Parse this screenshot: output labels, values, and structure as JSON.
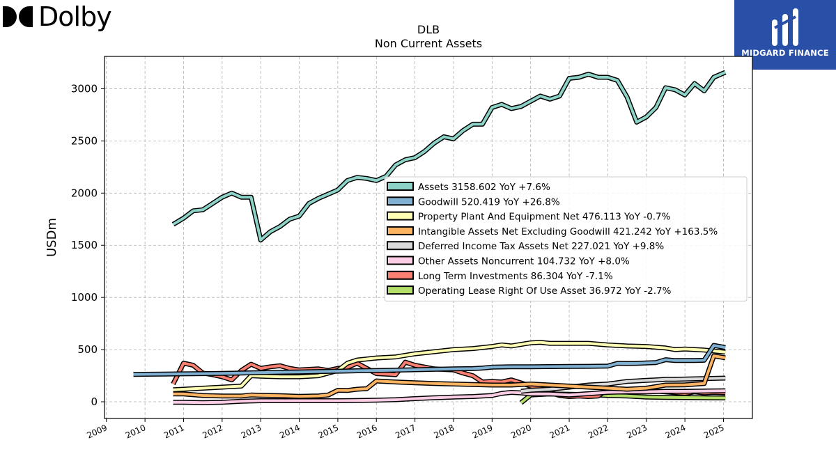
{
  "brand": {
    "name": "Dolby"
  },
  "partner": {
    "name": "MIDGARD FINANCE"
  },
  "chart_data": {
    "type": "line",
    "title": "DLB",
    "subtitle": "Non Current  Assets",
    "ylabel": "USDm",
    "xlim": [
      2008.95,
      2025.75
    ],
    "ylim": [
      -160,
      3310
    ],
    "yticks": [
      0,
      500,
      1000,
      1500,
      2000,
      2500,
      3000
    ],
    "xticks": [
      2009,
      2010,
      2011,
      2012,
      2013,
      2014,
      2015,
      2016,
      2017,
      2018,
      2019,
      2020,
      2021,
      2022,
      2023,
      2024,
      2025
    ],
    "grid": true,
    "legend_position": "right-center",
    "series": [
      {
        "name": "Assets",
        "label": "Assets  3158.602 YoY +7.6%",
        "color": "#8dd3c7",
        "x": [
          2010.73,
          2011.0,
          2011.25,
          2011.5,
          2011.75,
          2012.0,
          2012.25,
          2012.5,
          2012.75,
          2013.0,
          2013.25,
          2013.5,
          2013.75,
          2014.0,
          2014.25,
          2014.5,
          2014.75,
          2015.0,
          2015.25,
          2015.5,
          2015.75,
          2016.0,
          2016.25,
          2016.5,
          2016.75,
          2017.0,
          2017.25,
          2017.5,
          2017.75,
          2018.0,
          2018.25,
          2018.5,
          2018.75,
          2019.0,
          2019.25,
          2019.5,
          2019.75,
          2020.0,
          2020.25,
          2020.5,
          2020.75,
          2021.0,
          2021.25,
          2021.5,
          2021.75,
          2022.0,
          2022.25,
          2022.5,
          2022.75,
          2023.0,
          2023.25,
          2023.5,
          2023.75,
          2024.0,
          2024.25,
          2024.5,
          2024.75,
          2025.05
        ],
        "y": [
          1700,
          1760,
          1830,
          1840,
          1900,
          1960,
          2000,
          1960,
          1960,
          1550,
          1630,
          1680,
          1750,
          1780,
          1900,
          1950,
          1990,
          2030,
          2120,
          2150,
          2140,
          2120,
          2160,
          2270,
          2320,
          2340,
          2400,
          2480,
          2540,
          2520,
          2600,
          2660,
          2660,
          2820,
          2850,
          2810,
          2830,
          2880,
          2930,
          2900,
          2930,
          3100,
          3110,
          3140,
          3110,
          3110,
          3080,
          2920,
          2680,
          2730,
          2820,
          3010,
          2990,
          2940,
          3050,
          2980,
          3110,
          3158
        ]
      },
      {
        "name": "Goodwill",
        "label": "Goodwill  520.419 YoY +26.8%",
        "color": "#80b1d3",
        "x": [
          2009.7,
          2010.0,
          2010.5,
          2011.0,
          2011.5,
          2012.0,
          2012.5,
          2013.0,
          2013.5,
          2014.0,
          2014.5,
          2015.0,
          2015.5,
          2016.0,
          2016.5,
          2017.0,
          2017.5,
          2018.0,
          2018.5,
          2018.75,
          2019.0,
          2019.5,
          2020.0,
          2020.5,
          2021.0,
          2021.5,
          2022.0,
          2022.25,
          2022.5,
          2022.75,
          2023.0,
          2023.25,
          2023.5,
          2023.75,
          2024.0,
          2024.25,
          2024.5,
          2024.75,
          2025.05
        ],
        "y": [
          262,
          264,
          266,
          268,
          270,
          272,
          276,
          280,
          283,
          286,
          290,
          293,
          297,
          300,
          303,
          307,
          311,
          315,
          318,
          323,
          332,
          335,
          335,
          337,
          339,
          340,
          342,
          368,
          367,
          368,
          372,
          376,
          403,
          395,
          395,
          395,
          398,
          540,
          520
        ]
      },
      {
        "name": "Property Plant And Equipment Net",
        "label": "Property Plant And Equipment Net  476.113 YoY -0.7%",
        "color": "#ffffb3",
        "x": [
          2010.73,
          2011.0,
          2011.5,
          2012.0,
          2012.5,
          2012.75,
          2013.0,
          2013.5,
          2014.0,
          2014.5,
          2015.0,
          2015.25,
          2015.5,
          2015.75,
          2016.0,
          2016.5,
          2017.0,
          2017.5,
          2018.0,
          2018.5,
          2019.0,
          2019.25,
          2019.5,
          2019.75,
          2020.0,
          2020.25,
          2020.5,
          2021.0,
          2021.5,
          2022.0,
          2022.5,
          2023.0,
          2023.5,
          2023.75,
          2024.0,
          2024.5,
          2025.05
        ],
        "y": [
          115,
          120,
          130,
          140,
          150,
          250,
          245,
          240,
          240,
          250,
          300,
          370,
          400,
          410,
          420,
          430,
          460,
          480,
          500,
          510,
          530,
          545,
          535,
          550,
          565,
          570,
          560,
          560,
          560,
          545,
          535,
          530,
          515,
          500,
          505,
          495,
          476
        ]
      },
      {
        "name": "Intangible Assets Net Excluding Goodwill",
        "label": "Intangible Assets Net Excluding Goodwill  421.242 YoY +163.5%",
        "color": "#fdb462",
        "x": [
          2010.73,
          2011.0,
          2011.5,
          2012.0,
          2012.5,
          2012.75,
          2013.0,
          2013.5,
          2014.0,
          2014.5,
          2014.75,
          2015.0,
          2015.25,
          2015.5,
          2015.75,
          2016.0,
          2016.5,
          2017.0,
          2017.5,
          2018.0,
          2018.5,
          2019.0,
          2019.5,
          2020.0,
          2020.5,
          2021.0,
          2021.5,
          2022.0,
          2022.5,
          2023.0,
          2023.5,
          2024.0,
          2024.5,
          2024.75,
          2025.05
        ],
        "y": [
          75,
          75,
          60,
          55,
          55,
          65,
          62,
          58,
          52,
          56,
          65,
          110,
          108,
          120,
          125,
          200,
          190,
          182,
          175,
          170,
          165,
          160,
          160,
          170,
          160,
          150,
          140,
          130,
          120,
          130,
          160,
          162,
          175,
          440,
          421
        ]
      },
      {
        "name": "Deferred Income Tax Assets Net",
        "label": "Deferred Income Tax Assets Net  227.021 YoY +9.8%",
        "color": "#d9d9d9",
        "x": [
          2019.75,
          2020.0,
          2020.5,
          2021.0,
          2021.5,
          2022.0,
          2022.25,
          2022.5,
          2022.75,
          2023.0,
          2023.25,
          2023.5,
          2023.75,
          2024.0,
          2024.5,
          2025.05
        ],
        "y": [
          100,
          110,
          120,
          140,
          160,
          170,
          182,
          195,
          200,
          205,
          210,
          215,
          215,
          218,
          222,
          227
        ]
      },
      {
        "name": "Other Assets Noncurrent",
        "label": "Other Assets Noncurrent  104.732 YoY +8.0%",
        "color": "#fccde5",
        "x": [
          2010.73,
          2011.0,
          2011.5,
          2012.0,
          2012.5,
          2013.0,
          2014.0,
          2015.0,
          2016.0,
          2016.5,
          2017.0,
          2017.5,
          2018.0,
          2018.5,
          2019.0,
          2019.25,
          2019.5,
          2019.75,
          2020.0,
          2020.5,
          2021.0,
          2022.0,
          2022.5,
          2023.0,
          2023.5,
          2024.0,
          2024.5,
          2025.05
        ],
        "y": [
          -5,
          -5,
          -8,
          -5,
          5,
          10,
          10,
          10,
          15,
          20,
          30,
          38,
          45,
          50,
          60,
          80,
          90,
          85,
          75,
          75,
          65,
          90,
          95,
          95,
          100,
          100,
          103,
          105
        ]
      },
      {
        "name": "Long Term Investments",
        "label": "Long Term Investments  86.304 YoY -7.1%",
        "color": "#fb8072",
        "x": [
          2010.73,
          2011.0,
          2011.25,
          2011.5,
          2011.75,
          2012.0,
          2012.25,
          2012.5,
          2012.75,
          2013.0,
          2013.25,
          2013.5,
          2013.75,
          2014.0,
          2014.5,
          2014.75,
          2015.0,
          2015.25,
          2015.5,
          2015.75,
          2016.0,
          2016.25,
          2016.5,
          2016.75,
          2017.0,
          2017.5,
          2018.0,
          2018.25,
          2018.5,
          2018.75,
          2019.0,
          2019.25,
          2019.5,
          2019.75,
          2020.0,
          2020.25,
          2020.5,
          2020.75,
          2021.0,
          2021.25,
          2021.5,
          2021.75,
          2022.0,
          2022.25,
          2022.5,
          2022.75,
          2023.0,
          2023.5,
          2024.0,
          2024.25,
          2024.5,
          2024.75,
          2025.05
        ],
        "y": [
          170,
          370,
          350,
          275,
          260,
          240,
          210,
          300,
          360,
          320,
          335,
          345,
          320,
          305,
          315,
          300,
          320,
          330,
          370,
          320,
          270,
          265,
          260,
          380,
          350,
          315,
          305,
          275,
          250,
          190,
          195,
          190,
          210,
          180,
          150,
          130,
          90,
          60,
          50,
          55,
          50,
          55,
          120,
          125,
          100,
          120,
          110,
          95,
          80,
          95,
          85,
          90,
          86
        ]
      },
      {
        "name": "Operating Lease Right Of Use Asset",
        "label": "Operating Lease Right Of Use Asset  36.972 YoY -2.7%",
        "color": "#b3de69",
        "x": [
          2019.75,
          2020.0,
          2020.5,
          2021.0,
          2021.5,
          2022.0,
          2022.5,
          2023.0,
          2023.5,
          2024.0,
          2024.5,
          2025.05
        ],
        "y": [
          -10,
          65,
          75,
          72,
          68,
          60,
          55,
          45,
          42,
          40,
          38,
          37
        ]
      }
    ]
  }
}
